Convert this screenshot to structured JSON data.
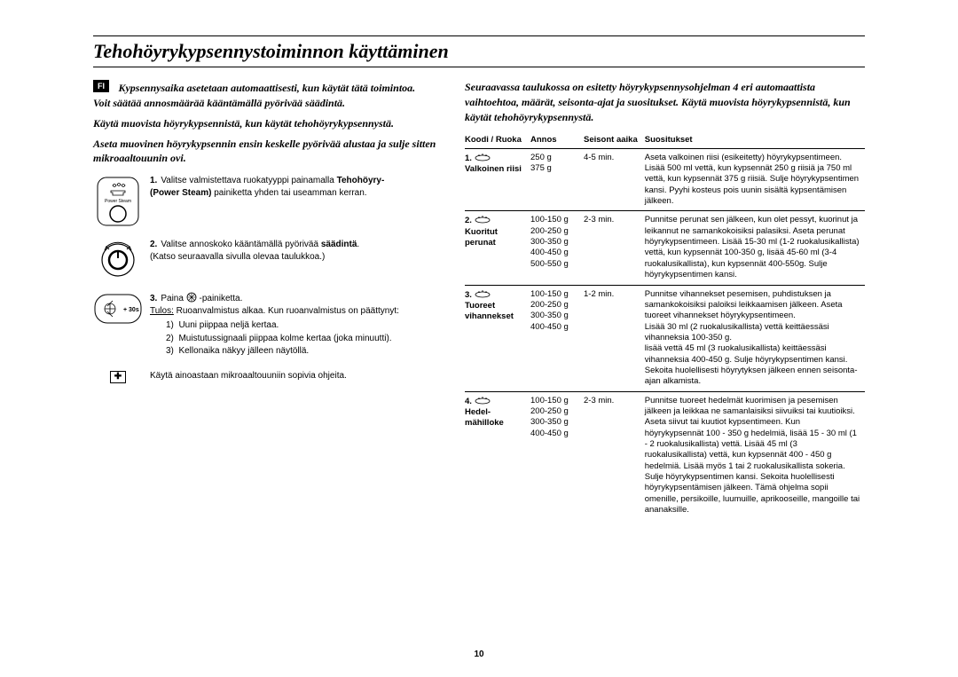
{
  "badge": "FI",
  "title": "Tehohöyrykypsennystoiminnon käyttäminen",
  "left": {
    "intro1": "Kypsennysaika asetetaan automaattisesti, kun käytät tätä toimintoa.",
    "intro2": "Voit säätää annosmäärää kääntämällä pyörivää säädintä.",
    "intro3": "Käytä muovista höyrykypsennistä, kun käytät tehohöyrykypsennystä.",
    "intro4": "Aseta muovinen höyrykypsennin ensin keskelle pyörivää alustaa ja sulje sitten mikroaaltouunin ovi.",
    "step1_num": "1.",
    "step1_lead": "Valitse valmistettava ruokatyyppi painamalla ",
    "step1_bold1": "Tehohöyry-",
    "step1_bold2": "(Power Steam)",
    "step1_tail": " painiketta yhden tai useamman kerran.",
    "step1_icon_label": "Power Steam",
    "step2_num": "2.",
    "step2_lead": "Valitse annoskoko kääntämällä pyörivää ",
    "step2_bold": "säädintä",
    "step2_tail": ".",
    "step2_extra": "(Katso seuraavalla sivulla olevaa taulukkoa.)",
    "step3_num": "3.",
    "step3_lead": "Paina ",
    "step3_tail": " -painiketta.",
    "step3_tulos_u": "Tulos:",
    "step3_tulos": " Ruoanvalmistus alkaa. Kun ruoanvalmistus on päättynyt:",
    "step3_li1": "Uuni piippaa neljä kertaa.",
    "step3_li2": "Muistutussignaali piippaa kolme kertaa (joka minuutti).",
    "step3_li3": "Kellonaika näkyy jälleen näytöllä.",
    "step3_icon_label": "+ 30s",
    "note_icon": "✚",
    "note": "Käytä ainoastaan mikroaaltouuniin sopivia ohjeita."
  },
  "right": {
    "intro": "Seuraavassa taulukossa on esitetty höyrykypsennysohjelman 4 eri automaattista vaihtoehtoa, määrät, seisonta-ajat ja suositukset. Käytä muovista höyrykypsennistä, kun käytät tehohöyrykypsennystä.",
    "headers": {
      "code": "Koodi / Ruoka",
      "portion": "Annos",
      "time": "Seisont aaika",
      "rec": "Suositukset"
    },
    "rows": [
      {
        "code_num": "1.",
        "code_label": "Valkoinen riisi",
        "portion": "250 g\n375 g",
        "time": "4-5 min.",
        "rec": "Aseta valkoinen riisi (esikeitetty) höyrykypsentimeen. Lisää 500 ml vettä, kun kypsennät 250 g riisiä ja 750 ml vettä, kun kypsennät 375 g riisiä. Sulje höyrykypsentimen kansi. Pyyhi kosteus pois uunin sisältä kypsentämisen jälkeen."
      },
      {
        "code_num": "2.",
        "code_label": "Kuoritut perunat",
        "portion": "100-150 g\n200-250 g\n300-350 g\n400-450 g\n500-550 g",
        "time": "2-3 min.",
        "rec": "Punnitse perunat sen jälkeen, kun olet pessyt, kuorinut  ja leikannut ne samankokoisiksi palasiksi. Aseta perunat höyrykypsentimeen. Lisää 15-30 ml (1-2 ruokalusikallista) vettä, kun kypsennät 100-350 g, lisää 45-60 ml  (3-4 ruokalusikallista), kun kypsennät 400-550g. Sulje höyrykypsentimen kansi."
      },
      {
        "code_num": "3.",
        "code_label": "Tuoreet vihannekset",
        "portion": "100-150 g\n200-250 g\n300-350 g\n400-450 g",
        "time": "1-2 min.",
        "rec": "Punnitse vihannekset pesemisen, puhdistuksen ja samankokoisiksi paloiksi leikkaamisen jälkeen. Aseta tuoreet vihannekset höyrykypsentimeen.\nLisää 30 ml (2 ruokalusikallista) vettä keittäessäsi vihanneksia 100-350 g.\nlisää vettä 45 ml  (3 ruokalusikallista) keittäessäsi vihanneksia 400-450 g. Sulje höyrykypsentimen kansi. Sekoita huolellisesti höyrytyksen jälkeen ennen seisonta-ajan alkamista."
      },
      {
        "code_num": "4.",
        "code_label": "Hedel-mähilloke",
        "portion": "100-150 g\n200-250 g\n300-350 g\n400-450 g",
        "time": "2-3 min.",
        "rec": "Punnitse tuoreet hedelmät kuorimisen ja pesemisen jälkeen ja leikkaa ne samanlaisiksi siivuiksi tai kuutioiksi. Aseta siivut tai kuutiot kypsentimeen. Kun höyrykypsennät 100 - 350 g hedelmiä, lisää 15 - 30 ml (1 - 2 ruokalusikallista) vettä. Lisää 45 ml (3 ruokalusikallista) vettä, kun kypsennät 400 - 450 g hedelmiä. Lisää myös 1 tai 2 ruokalusikallista sokeria. Sulje höyrykypsentimen kansi. Sekoita huolellisesti höyrykypsentämisen jälkeen. Tämä ohjelma sopii omenille, persikoille, luumuille, aprikooseille, mangoille tai ananaksille."
      }
    ]
  },
  "page_number": "10"
}
